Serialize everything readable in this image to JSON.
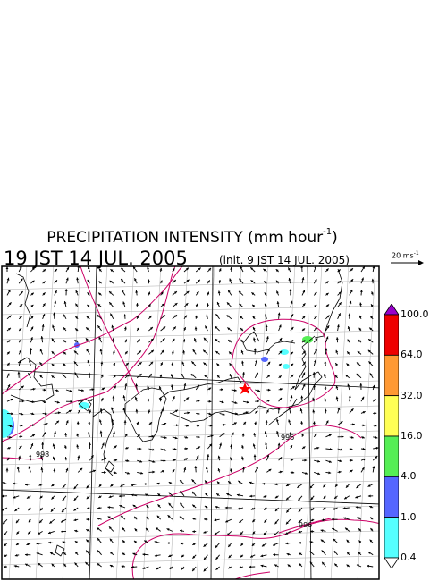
{
  "title": {
    "main": "PRECIPITATION INTENSITY (mm hour",
    "exp": "-1",
    "close": ")"
  },
  "datetime": "19 JST 14 JUL. 2005",
  "init_label": "(init. 9 JST 14 JUL. 2005)",
  "reference_vector": {
    "label": "20 ms",
    "exp": "-1"
  },
  "colorbar": {
    "levels": [
      "100.0",
      "64.0",
      "32.0",
      "16.0",
      "4.0",
      "1.0",
      "0.4"
    ],
    "colors": [
      "#ee0000",
      "#ff9933",
      "#ffff55",
      "#55ee55",
      "#5566ff",
      "#55ffff"
    ],
    "over_color": "#9900cc",
    "under_color": "#ffffff"
  },
  "map": {
    "isobar_labels": [
      "998",
      "996",
      "996"
    ],
    "marker": "red-star",
    "colors": {
      "isobar": "#cc0066",
      "coast": "#000000",
      "grid": "#bbbbbb",
      "frame": "#000000"
    }
  }
}
